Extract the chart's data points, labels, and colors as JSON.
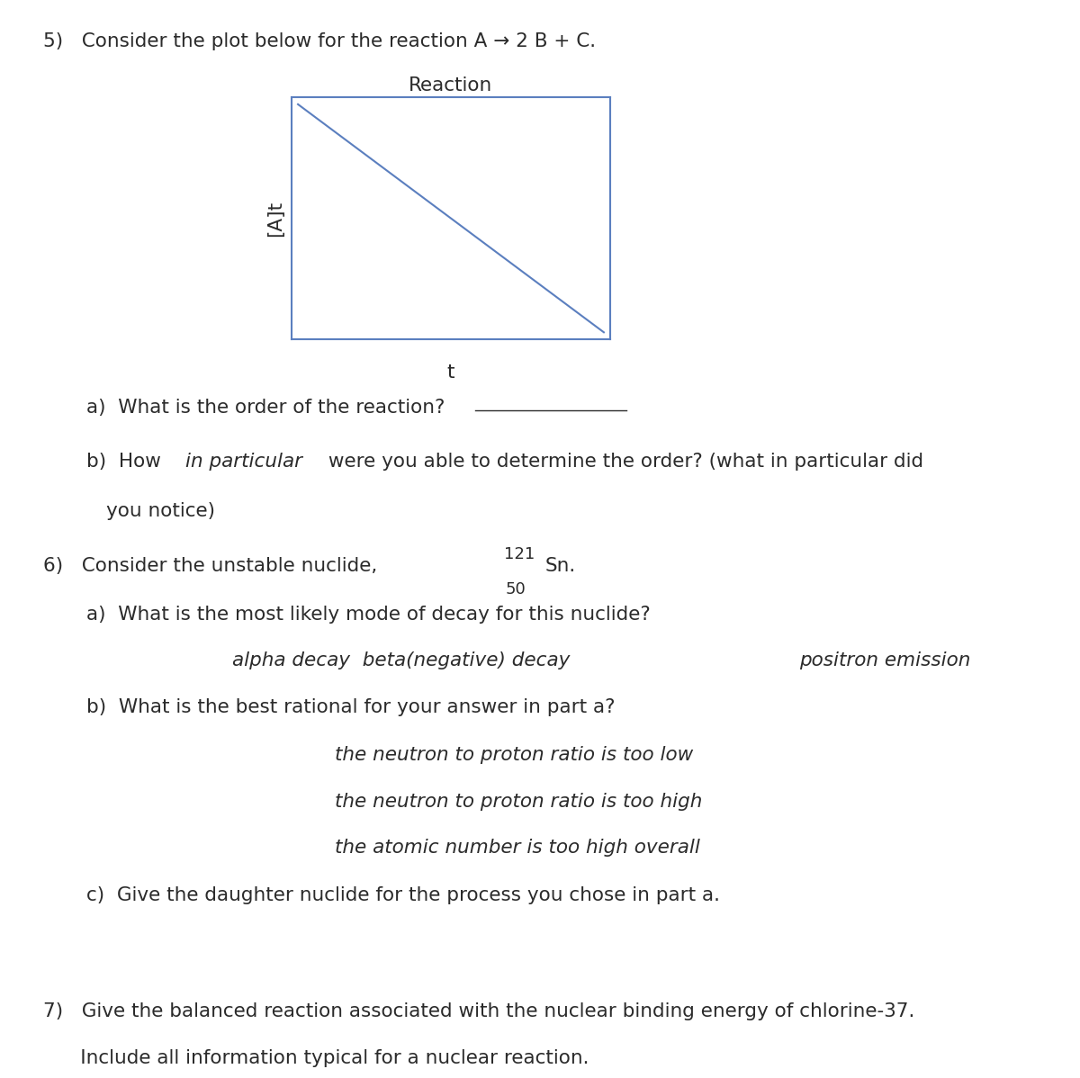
{
  "bg_color": "#ffffff",
  "text_color": "#2b2b2b",
  "fig_width": 12.0,
  "fig_height": 11.98,
  "q5_header": "5)   Consider the plot below for the reaction A → 2 B + C.",
  "plot_title": "Reaction",
  "plot_xlabel": "t",
  "plot_ylabel": "[A]t",
  "plot_line_color": "#5b7fbf",
  "plot_box_color": "#5b7fbf",
  "q5a_text1": "a)  What is the order of the reaction?",
  "q5b_text1": "b)  How ",
  "q5b_italic": "in particular",
  "q5b_text2": " were you able to determine the order? (what in particular did",
  "q5b_text3": "      you notice)",
  "q6_text1": "6)   Consider the unstable nuclide, ",
  "q6_mass": "121",
  "q6_atomic": "50",
  "q6_element": "Sn.",
  "q6a_text": "a)  What is the most likely mode of decay for this nuclide?",
  "q6a_c1": "alpha decay  beta(negative) decay",
  "q6a_c2": "positron emission",
  "q6b_text": "b)  What is the best rational for your answer in part a?",
  "q6b_c1": "the neutron to proton ratio is too low",
  "q6b_c2": "the neutron to proton ratio is too high",
  "q6b_c3": "the atomic number is too high overall",
  "q6c_text": "c)  Give the daughter nuclide for the process you chose in part a.",
  "q7_text1": "7)   Give the balanced reaction associated with the nuclear binding energy of chlorine-37.",
  "q7_text2": "      Include all information typical for a nuclear reaction."
}
